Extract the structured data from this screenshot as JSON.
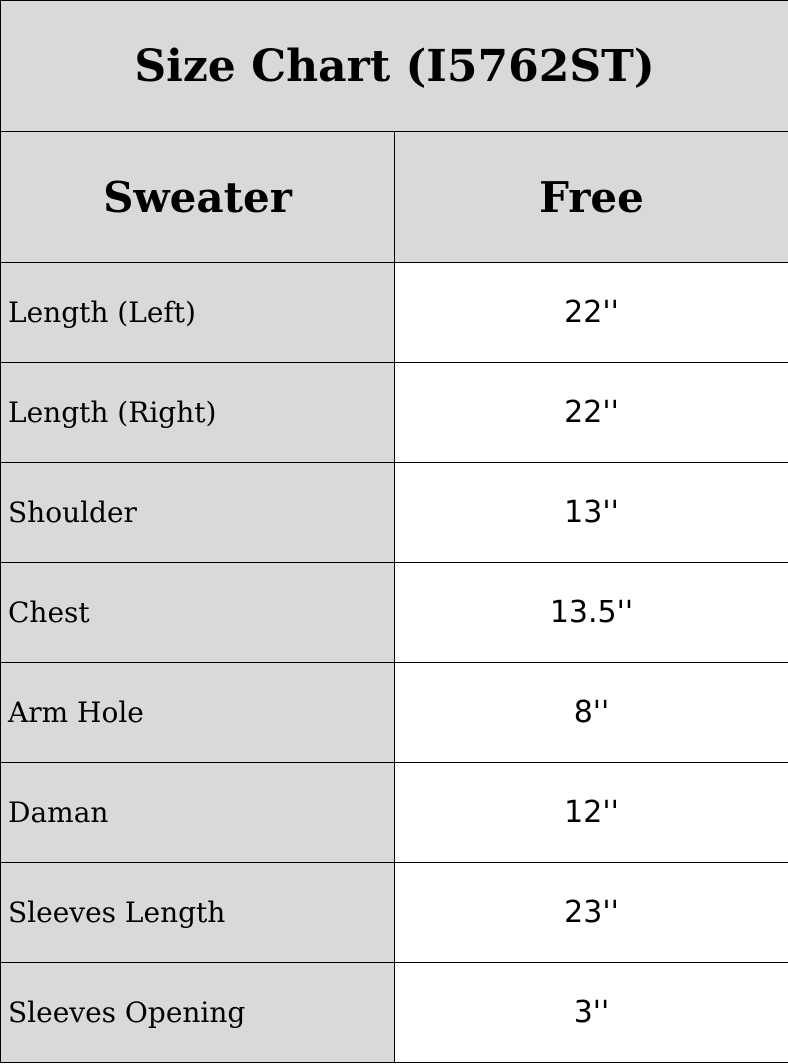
{
  "title": "Size Chart (I5762ST)",
  "header": {
    "col1": "Sweater",
    "col2": "Free"
  },
  "rows": [
    {
      "label": "Length (Left)",
      "value": "22''"
    },
    {
      "label": "Length (Right)",
      "value": "22''"
    },
    {
      "label": "Shoulder",
      "value": "13''"
    },
    {
      "label": "Chest",
      "value": "13.5''"
    },
    {
      "label": "Arm Hole",
      "value": "8''"
    },
    {
      "label": "Daman",
      "value": "12''"
    },
    {
      "label": "Sleeves Length",
      "value": "23''"
    },
    {
      "label": "Sleeves Opening",
      "value": "3''"
    }
  ]
}
